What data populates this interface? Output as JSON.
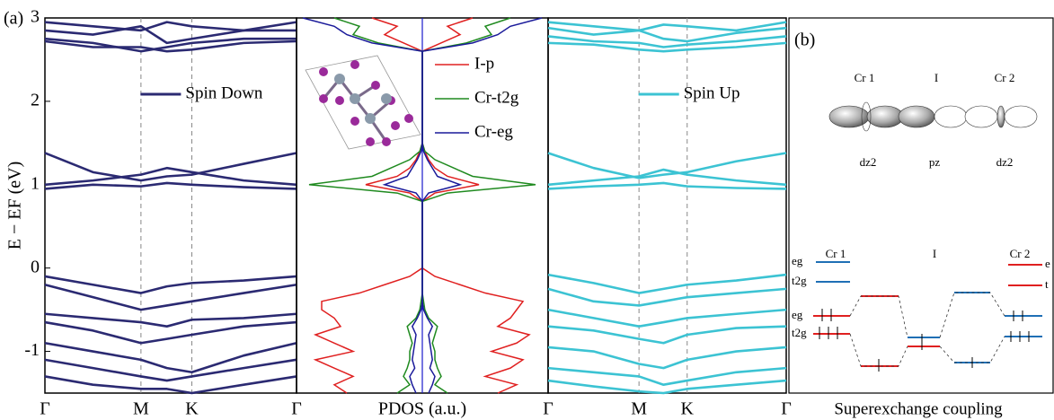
{
  "panel_labels": [
    "(a)",
    "(b)"
  ],
  "chart_data": [
    {
      "type": "line",
      "ylabel": "E − EF (eV)",
      "x": [
        0,
        0.5,
        1,
        1.27,
        1.53,
        2.07,
        2.62
      ],
      "xlim": [
        0,
        2.62
      ],
      "xticks": [
        {
          "value": 0,
          "label": "Γ"
        },
        {
          "value": 1,
          "label": "M"
        },
        {
          "value": 1.53,
          "label": "K"
        },
        {
          "value": 2.62,
          "label": "Γ"
        }
      ],
      "ylim": [
        -1.5,
        3
      ],
      "yticks": [
        -1,
        0,
        1,
        2,
        3
      ],
      "legend": "upper-center",
      "series": [
        {
          "name": "Spin Down",
          "color": "#2b2a72",
          "values": [
            [
              2.95,
              2.9,
              2.85,
              2.95,
              2.9,
              2.85,
              2.95
            ],
            [
              2.85,
              2.8,
              2.9,
              2.7,
              2.75,
              2.85,
              2.85
            ],
            [
              2.75,
              2.7,
              2.6,
              2.65,
              2.7,
              2.75,
              2.75
            ],
            [
              2.72,
              2.65,
              2.65,
              2.6,
              2.62,
              2.7,
              2.72
            ],
            [
              1.38,
              1.15,
              1.05,
              1.1,
              1.12,
              1.25,
              1.38
            ],
            [
              1.0,
              1.05,
              1.12,
              1.2,
              1.15,
              1.05,
              1.0
            ],
            [
              0.95,
              1.0,
              0.98,
              1.02,
              1.0,
              0.97,
              0.95
            ],
            [
              -0.1,
              -0.2,
              -0.3,
              -0.22,
              -0.18,
              -0.15,
              -0.1
            ],
            [
              -0.2,
              -0.35,
              -0.5,
              -0.45,
              -0.4,
              -0.3,
              -0.2
            ],
            [
              -0.55,
              -0.6,
              -0.65,
              -0.7,
              -0.62,
              -0.6,
              -0.55
            ],
            [
              -0.65,
              -0.75,
              -0.9,
              -0.85,
              -0.8,
              -0.7,
              -0.65
            ],
            [
              -0.9,
              -1.0,
              -1.1,
              -1.2,
              -1.25,
              -1.05,
              -0.9
            ],
            [
              -1.1,
              -1.2,
              -1.3,
              -1.35,
              -1.3,
              -1.2,
              -1.1
            ],
            [
              -1.3,
              -1.4,
              -1.45,
              -1.45,
              -1.5,
              -1.4,
              -1.3
            ]
          ]
        }
      ]
    },
    {
      "type": "pdos",
      "xlabel": "PDOS (a.u.)",
      "xlim": [
        -1,
        1
      ],
      "ylim": [
        -1.5,
        3
      ],
      "legend": "upper-right",
      "y": [
        -1.5,
        -1.4,
        -1.3,
        -1.2,
        -1.1,
        -1.0,
        -0.9,
        -0.8,
        -0.7,
        -0.6,
        -0.5,
        -0.4,
        -0.3,
        -0.2,
        -0.1,
        0,
        0.1,
        0.2,
        0.3,
        0.4,
        0.5,
        0.6,
        0.7,
        0.8,
        0.9,
        1.0,
        1.1,
        1.2,
        1.3,
        1.4,
        1.5,
        1.6,
        1.7,
        1.8,
        1.9,
        2.0,
        2.1,
        2.2,
        2.3,
        2.4,
        2.5,
        2.6,
        2.7,
        2.8,
        2.9,
        3.0
      ],
      "series": [
        {
          "name": "I-p",
          "color": "#e02020",
          "up": [
            0.6,
            0.75,
            0.5,
            0.7,
            0.8,
            0.55,
            0.75,
            0.85,
            0.6,
            0.7,
            0.75,
            0.8,
            0.5,
            0.3,
            0.1,
            0,
            0,
            0,
            0,
            0,
            0,
            0,
            0,
            0,
            0.1,
            0.45,
            0.2,
            0.1,
            0.05,
            0.02,
            0,
            0,
            0,
            0,
            0,
            0,
            0,
            0,
            0,
            0,
            0,
            0,
            0.15,
            0.3,
            0.2,
            0.4
          ],
          "down": [
            -0.6,
            -0.7,
            -0.55,
            -0.7,
            -0.85,
            -0.55,
            -0.7,
            -0.85,
            -0.65,
            -0.7,
            -0.8,
            -0.8,
            -0.5,
            -0.3,
            -0.1,
            0,
            0,
            0,
            0,
            0,
            0,
            0,
            0,
            0,
            -0.1,
            -0.45,
            -0.2,
            -0.1,
            -0.05,
            -0.02,
            0,
            0,
            0,
            0,
            0,
            0,
            0,
            0,
            0,
            0,
            0,
            0,
            -0.15,
            -0.3,
            -0.2,
            -0.4
          ]
        },
        {
          "name": "Cr-t2g",
          "color": "#1f8a1f",
          "up": [
            0.2,
            0.1,
            0.15,
            0.12,
            0.1,
            0.1,
            0.08,
            0.1,
            0.12,
            0.05,
            0.02,
            0.01,
            0,
            0,
            0,
            0,
            0,
            0,
            0,
            0,
            0,
            0,
            0,
            0,
            0.2,
            0.9,
            0.4,
            0.25,
            0.1,
            0.02,
            0,
            0,
            0,
            0,
            0,
            0,
            0,
            0,
            0,
            0,
            0,
            0,
            0.35,
            0.55,
            0.5,
            0.7
          ],
          "down": [
            -0.2,
            -0.1,
            -0.15,
            -0.12,
            -0.1,
            -0.1,
            -0.08,
            -0.1,
            -0.12,
            -0.05,
            -0.02,
            -0.01,
            0,
            0,
            0,
            0,
            0,
            0,
            0,
            0,
            0,
            0,
            0,
            0,
            -0.2,
            -0.9,
            -0.4,
            -0.25,
            -0.1,
            -0.02,
            0,
            0,
            0,
            0,
            0,
            0,
            0,
            0,
            0,
            0,
            0,
            0,
            -0.35,
            -0.55,
            -0.5,
            -0.7
          ]
        },
        {
          "name": "Cr-eg",
          "color": "#1a1a9a",
          "up": [
            0.05,
            0.08,
            0.1,
            0.06,
            0.08,
            0.07,
            0.06,
            0.05,
            0.08,
            0.04,
            0.01,
            0,
            0,
            0,
            0,
            0,
            0,
            0,
            0,
            0,
            0,
            0,
            0,
            0,
            0.05,
            0.3,
            0.12,
            0.08,
            0.04,
            0.01,
            0,
            0,
            0,
            0,
            0,
            0,
            0,
            0,
            0,
            0,
            0,
            0,
            0.4,
            0.6,
            0.7,
            0.95
          ],
          "down": [
            -0.05,
            -0.08,
            -0.1,
            -0.06,
            -0.08,
            -0.07,
            -0.06,
            -0.05,
            -0.08,
            -0.04,
            -0.01,
            0,
            0,
            0,
            0,
            0,
            0,
            0,
            0,
            0,
            0,
            0,
            0,
            0,
            -0.05,
            -0.3,
            -0.12,
            -0.08,
            -0.04,
            -0.01,
            0,
            0,
            0,
            0,
            0,
            0,
            0,
            0,
            0,
            0,
            0,
            0,
            -0.4,
            -0.6,
            -0.7,
            -0.95
          ]
        }
      ]
    },
    {
      "type": "line",
      "x": [
        0,
        0.5,
        1,
        1.27,
        1.53,
        2.07,
        2.62
      ],
      "xlim": [
        0,
        2.62
      ],
      "xticks": [
        {
          "value": 0,
          "label": "Γ"
        },
        {
          "value": 1,
          "label": "M"
        },
        {
          "value": 1.53,
          "label": "K"
        },
        {
          "value": 2.62,
          "label": "Γ"
        }
      ],
      "ylim": [
        -1.5,
        3
      ],
      "legend": "upper-center",
      "series": [
        {
          "name": "Spin Up",
          "color": "#3cc3d3",
          "values": [
            [
              2.95,
              2.9,
              2.85,
              2.92,
              2.9,
              2.85,
              2.95
            ],
            [
              2.88,
              2.8,
              2.85,
              2.75,
              2.72,
              2.82,
              2.88
            ],
            [
              2.78,
              2.72,
              2.7,
              2.65,
              2.68,
              2.72,
              2.78
            ],
            [
              2.7,
              2.68,
              2.62,
              2.6,
              2.62,
              2.65,
              2.7
            ],
            [
              1.38,
              1.2,
              1.08,
              1.12,
              1.15,
              1.28,
              1.38
            ],
            [
              1.0,
              1.05,
              1.1,
              1.18,
              1.12,
              1.05,
              1.0
            ],
            [
              0.95,
              0.98,
              1.0,
              1.02,
              0.98,
              0.96,
              0.95
            ],
            [
              -0.08,
              -0.18,
              -0.3,
              -0.25,
              -0.2,
              -0.15,
              -0.08
            ],
            [
              -0.25,
              -0.4,
              -0.45,
              -0.4,
              -0.35,
              -0.3,
              -0.25
            ],
            [
              -0.5,
              -0.6,
              -0.7,
              -0.65,
              -0.6,
              -0.55,
              -0.5
            ],
            [
              -0.7,
              -0.75,
              -0.85,
              -0.9,
              -0.8,
              -0.72,
              -0.7
            ],
            [
              -0.95,
              -1.0,
              -1.15,
              -1.2,
              -1.1,
              -1.0,
              -0.95
            ],
            [
              -1.2,
              -1.25,
              -1.3,
              -1.4,
              -1.35,
              -1.25,
              -1.2
            ],
            [
              -1.35,
              -1.42,
              -1.48,
              -1.5,
              -1.45,
              -1.4,
              -1.35
            ]
          ]
        }
      ]
    }
  ],
  "diagram": {
    "atoms": [
      "Cr 1",
      "I",
      "Cr 2"
    ],
    "orbitals": [
      "dz2",
      "pz",
      "dz2"
    ],
    "level_atoms": [
      "Cr 1",
      "I",
      "Cr 2"
    ],
    "upper_levels": [
      "eg",
      "t2g"
    ],
    "right_key": [
      "e",
      "t"
    ],
    "lower_levels": [
      "eg",
      "t2g"
    ],
    "caption": "Superexchange coupling"
  }
}
